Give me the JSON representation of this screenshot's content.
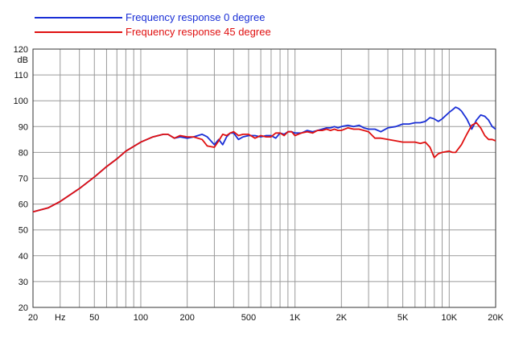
{
  "chart_data": {
    "type": "line",
    "title": "",
    "xlabel": "",
    "ylabel": "",
    "x_scale": "log",
    "xlim": [
      20,
      20000
    ],
    "ylim": [
      20,
      120
    ],
    "grid": true,
    "legend_position": "top-left",
    "y_unit_label": "dB",
    "x_ticks": [
      {
        "value": 20,
        "label": "20"
      },
      {
        "value": 30,
        "label": "Hz"
      },
      {
        "value": 50,
        "label": "50"
      },
      {
        "value": 100,
        "label": "100"
      },
      {
        "value": 200,
        "label": "200"
      },
      {
        "value": 500,
        "label": "500"
      },
      {
        "value": 1000,
        "label": "1K"
      },
      {
        "value": 2000,
        "label": "2K"
      },
      {
        "value": 5000,
        "label": "5K"
      },
      {
        "value": 10000,
        "label": "10K"
      },
      {
        "value": 20000,
        "label": "20K"
      }
    ],
    "y_ticks": [
      20,
      30,
      40,
      50,
      60,
      70,
      80,
      90,
      100,
      110,
      120
    ],
    "series": [
      {
        "name": "Frequency response 0 degree",
        "color": "#1a2fd6",
        "x": [
          20,
          25,
          30,
          40,
          50,
          60,
          70,
          80,
          100,
          120,
          140,
          150,
          165,
          180,
          200,
          220,
          250,
          270,
          300,
          320,
          340,
          360,
          380,
          400,
          430,
          460,
          500,
          550,
          600,
          650,
          700,
          750,
          800,
          850,
          900,
          950,
          1000,
          1100,
          1200,
          1300,
          1400,
          1500,
          1600,
          1700,
          1800,
          1900,
          2000,
          2200,
          2400,
          2600,
          2800,
          3000,
          3300,
          3600,
          4000,
          4500,
          5000,
          5500,
          6000,
          6500,
          7000,
          7500,
          8000,
          8500,
          9000,
          10000,
          10500,
          11000,
          11500,
          12000,
          13000,
          14000,
          15000,
          16000,
          17000,
          18000,
          19000,
          20000
        ],
        "y": [
          57,
          58.5,
          61,
          66,
          70.5,
          74.5,
          77.5,
          80.5,
          84,
          86,
          87,
          87,
          85.5,
          86,
          85.5,
          86,
          87,
          86,
          83,
          85,
          83,
          86,
          87.5,
          87.5,
          85,
          86,
          86.5,
          86.5,
          86,
          86.5,
          86.5,
          85.5,
          87.5,
          87,
          88,
          88,
          87.5,
          87.5,
          88.5,
          88,
          88.5,
          89,
          89.5,
          89.5,
          90,
          89.5,
          90,
          90.5,
          90,
          90.5,
          89.5,
          89,
          89,
          88,
          89.5,
          90,
          91,
          91,
          91.5,
          91.5,
          92,
          93.5,
          93,
          92,
          93,
          95.5,
          96.5,
          97.5,
          97,
          96,
          93,
          89,
          92.5,
          94.5,
          94,
          92.5,
          90,
          89
        ]
      },
      {
        "name": "Frequency response 45 degree",
        "color": "#e01010",
        "x": [
          20,
          25,
          30,
          40,
          50,
          60,
          70,
          80,
          100,
          120,
          140,
          150,
          165,
          180,
          200,
          220,
          250,
          270,
          300,
          320,
          340,
          360,
          380,
          400,
          430,
          460,
          500,
          550,
          600,
          650,
          700,
          750,
          800,
          850,
          900,
          950,
          1000,
          1100,
          1200,
          1300,
          1400,
          1500,
          1600,
          1700,
          1800,
          1900,
          2000,
          2200,
          2400,
          2600,
          2800,
          3000,
          3300,
          3600,
          4000,
          4500,
          5000,
          5500,
          6000,
          6500,
          7000,
          7500,
          8000,
          8500,
          9000,
          10000,
          10500,
          11000,
          11500,
          12000,
          13000,
          14000,
          15000,
          16000,
          17000,
          18000,
          19000,
          20000
        ],
        "y": [
          57,
          58.5,
          61,
          66,
          70.5,
          74.5,
          77.5,
          80.5,
          84,
          86,
          87,
          87,
          85.5,
          86.5,
          86,
          86,
          85,
          82.5,
          82,
          84.5,
          87,
          86.5,
          87.5,
          88,
          86.5,
          87,
          87,
          85.5,
          86.5,
          86,
          86,
          87.5,
          87.5,
          86.5,
          88,
          88,
          86.5,
          87.5,
          88,
          87.5,
          88.5,
          88.5,
          89,
          88.5,
          89,
          88.5,
          88.5,
          89.5,
          89,
          89,
          88.5,
          88,
          85.5,
          85.5,
          85,
          84.5,
          84,
          84,
          84,
          83.5,
          84,
          82,
          78,
          79.5,
          80,
          80.5,
          80,
          80,
          81.5,
          83,
          87,
          90.5,
          91.5,
          89.5,
          86.5,
          85,
          85,
          84.5
        ]
      }
    ]
  }
}
